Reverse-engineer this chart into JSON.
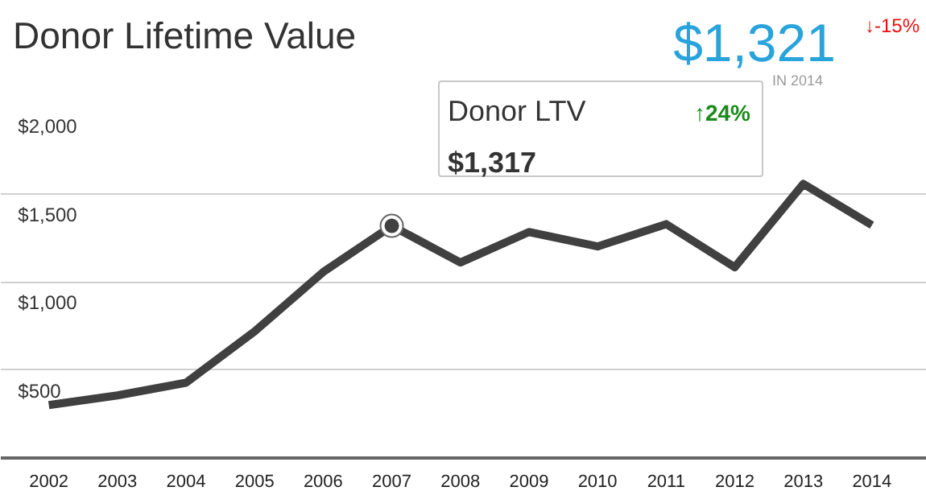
{
  "chart_data": {
    "type": "line",
    "title": "Donor Lifetime Value",
    "categories": [
      "2002",
      "2003",
      "2004",
      "2005",
      "2006",
      "2007",
      "2008",
      "2009",
      "2010",
      "2011",
      "2012",
      "2013",
      "2014"
    ],
    "series": [
      {
        "color": "#404040",
        "values": [
          300,
          355,
          427,
          718,
          1055,
          1317,
          1109,
          1282,
          1200,
          1327,
          1082,
          1555,
          1321
        ]
      },
      {
        "type": "scatter",
        "color": "#404040",
        "marker": "circle",
        "values": [
          null,
          null,
          null,
          null,
          null,
          1317,
          null,
          null,
          null,
          null,
          null,
          null,
          null
        ]
      }
    ],
    "ylim": [
      0,
      2000
    ],
    "yticks": [
      {
        "value": 500,
        "label": "$500"
      },
      {
        "value": 1000,
        "label": "$1,000"
      },
      {
        "value": 1500,
        "label": "$1,500"
      },
      {
        "value": 2000,
        "label": "$2,000"
      }
    ],
    "grid": "y",
    "line_style": "solid",
    "annotations": [
      "Donor LTV",
      "↑24%",
      "$1,317",
      "$1,321",
      "↓-15%",
      "IN 2014"
    ]
  }
}
